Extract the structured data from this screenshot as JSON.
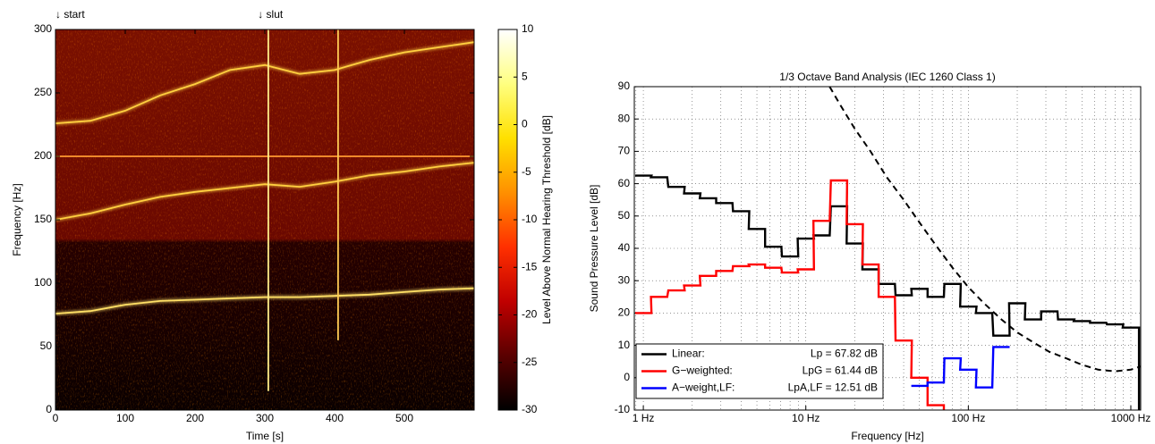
{
  "chart_data": [
    {
      "type": "spectrogram",
      "xlabel": "Time [s]",
      "ylabel": "Frequency [Hz]",
      "xlim": [
        0,
        600
      ],
      "ylim": [
        0,
        300
      ],
      "xticks": [
        0,
        100,
        200,
        300,
        400,
        500
      ],
      "yticks": [
        0,
        50,
        100,
        150,
        200,
        250,
        300
      ],
      "annotations": [
        {
          "text": "↓ start",
          "x": 0
        },
        {
          "text": "↓ slut",
          "x": 290
        }
      ],
      "colorbar": {
        "label": "Level Above Normal Hearing Threshold [dB]",
        "clim": [
          -30,
          10
        ],
        "ticks": [
          -30,
          -25,
          -20,
          -15,
          -10,
          -5,
          0,
          5,
          10
        ],
        "colormap": [
          "#000000",
          "#5a0000",
          "#c00000",
          "#ff3000",
          "#ff9000",
          "#ffe000",
          "#ffff80",
          "#ffffff"
        ]
      },
      "series": [
        {
          "color": "#ffe066",
          "x": [
            0,
            50,
            100,
            150,
            200,
            250,
            300,
            350,
            400,
            450,
            500,
            550,
            600
          ],
          "values": [
            76,
            78,
            83,
            86,
            87,
            88,
            89,
            89,
            90,
            91,
            93,
            95,
            96
          ]
        },
        {
          "color": "#ffd040",
          "x": [
            0,
            50,
            100,
            150,
            200,
            250,
            300,
            350,
            400,
            450,
            500,
            550,
            600
          ],
          "values": [
            150,
            155,
            162,
            168,
            172,
            175,
            178,
            176,
            180,
            185,
            188,
            192,
            195
          ]
        },
        {
          "color": "#ffd040",
          "x": [
            0,
            50,
            100,
            150,
            200,
            250,
            300,
            350,
            400,
            450,
            500,
            550,
            600
          ],
          "values": [
            226,
            228,
            236,
            248,
            257,
            268,
            272,
            265,
            268,
            276,
            282,
            286,
            290
          ]
        },
        {
          "color": "#ff9a30",
          "x": [
            0,
            600
          ],
          "values": [
            200,
            200
          ]
        },
        {
          "color": "#ffee88",
          "x": [
            305,
            305
          ],
          "values": [
            15,
            300
          ]
        },
        {
          "color": "#ffcc55",
          "x": [
            405,
            405
          ],
          "values": [
            55,
            300
          ]
        }
      ]
    },
    {
      "type": "step",
      "title": "1/3 Octave Band Analysis (IEC 1260 Class 1)",
      "xlabel": "Frequency [Hz]",
      "ylabel": "Sound Pressure Level [dB]",
      "log_x": true,
      "xlim": [
        0.88,
        1150
      ],
      "ylim": [
        -10,
        90
      ],
      "xticks": [
        {
          "value": 1,
          "label": "1 Hz"
        },
        {
          "value": 10,
          "label": "10 Hz"
        },
        {
          "value": 100,
          "label": "100 Hz"
        },
        {
          "value": 1000,
          "label": "1000 Hz"
        }
      ],
      "yticks": [
        -10,
        0,
        10,
        20,
        30,
        40,
        50,
        60,
        70,
        80,
        90
      ],
      "grid": true,
      "minor_grid": true,
      "legend": "lower left",
      "x": [
        1,
        1.25,
        1.6,
        2,
        2.5,
        3.15,
        4,
        5,
        6.3,
        8,
        10,
        12.5,
        16,
        20,
        25,
        31.5,
        40,
        50,
        63,
        80,
        100,
        125,
        160,
        200,
        250,
        315,
        400,
        500,
        630,
        800,
        1000
      ],
      "series": [
        {
          "name": "Linear:",
          "note": "Lp = 67.82 dB",
          "color": "#000000",
          "drop": true,
          "values": [
            62.5,
            62,
            59,
            57,
            55.5,
            54,
            51.5,
            46,
            40.5,
            37.5,
            43,
            44,
            53,
            41.5,
            33.5,
            29,
            25.5,
            27.5,
            25,
            29,
            22,
            20,
            13,
            23,
            18,
            20.5,
            18,
            17.5,
            17,
            16.5,
            15.5
          ]
        },
        {
          "name": "G−weighted:",
          "note": "LpG = 61.44 dB",
          "color": "#ff0000",
          "drop": true,
          "values": [
            20,
            25,
            27,
            28.5,
            31.5,
            33,
            34.5,
            35,
            34,
            32.5,
            33.5,
            48.5,
            61,
            47.5,
            35,
            25,
            11.5,
            0,
            -8.5,
            null,
            null,
            null,
            null,
            null,
            null,
            null,
            null,
            null,
            null,
            null,
            null
          ]
        },
        {
          "name": "A−weight,LF:",
          "note": "LpA,LF = 12.51 dB",
          "color": "#0000ff",
          "drop": false,
          "values": [
            null,
            null,
            null,
            null,
            null,
            null,
            null,
            null,
            null,
            null,
            null,
            null,
            null,
            null,
            null,
            null,
            null,
            -2.5,
            -1.5,
            6,
            2.5,
            -3,
            9.5,
            null,
            null,
            null,
            null,
            null,
            null,
            null,
            null
          ]
        },
        {
          "color": "#000000",
          "dashed": true,
          "x": [
            14,
            16,
            20,
            25,
            31.5,
            40,
            50,
            63,
            80,
            100,
            125,
            160,
            200,
            250,
            315,
            400,
            500,
            630,
            800,
            1000,
            1150
          ],
          "values": [
            90,
            85,
            77,
            70,
            62,
            55,
            48,
            41,
            34,
            28,
            23,
            18,
            14,
            11,
            8,
            6,
            4,
            2.5,
            2,
            2.5,
            3.5
          ]
        }
      ]
    }
  ]
}
